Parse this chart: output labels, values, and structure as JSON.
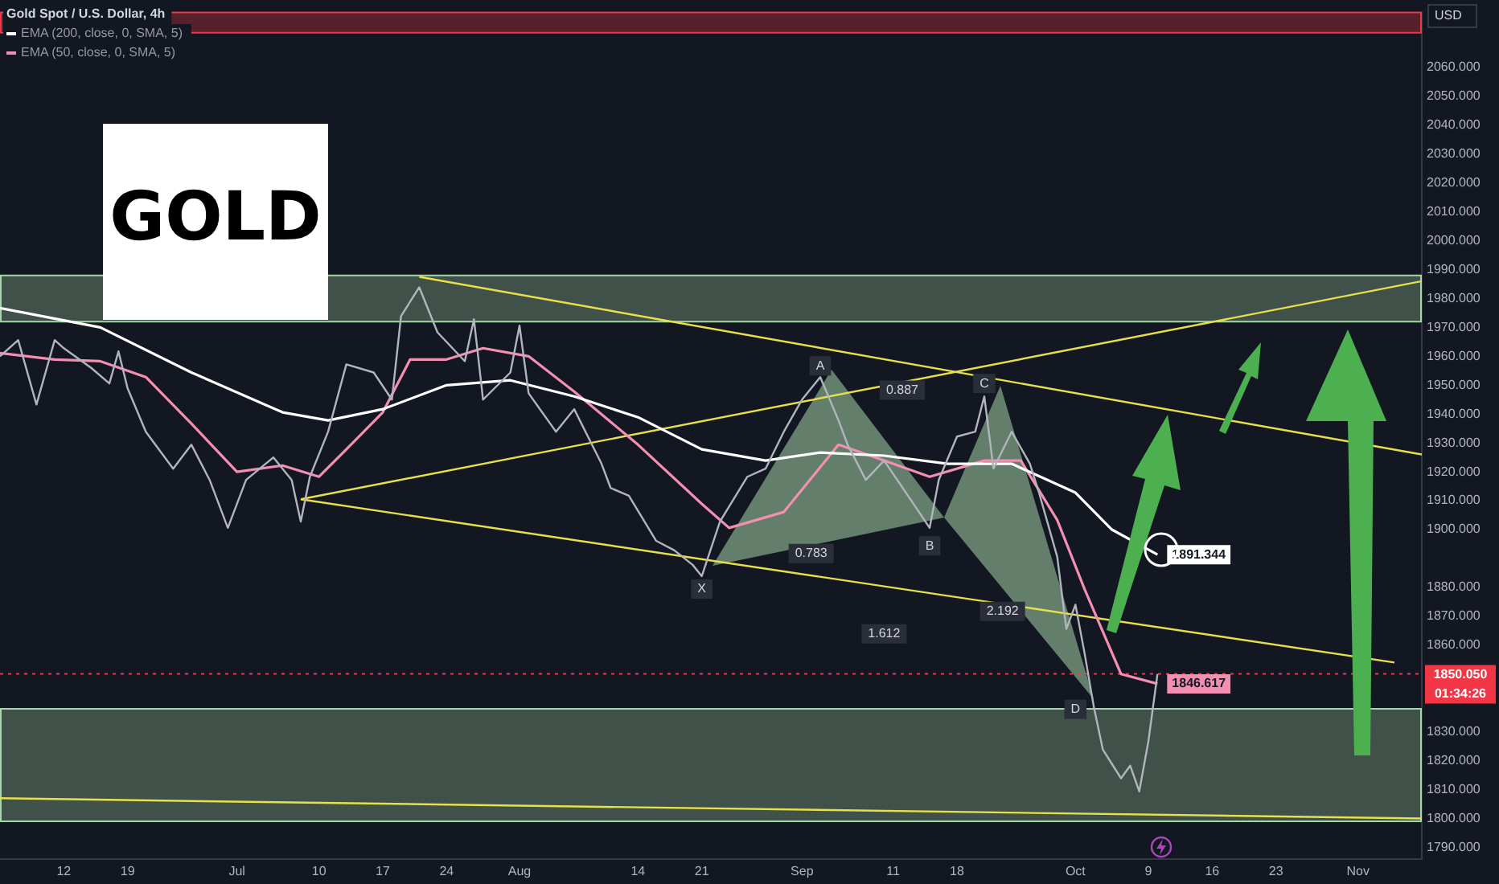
{
  "chart_data": {
    "type": "line",
    "title": "Gold Spot / U.S. Dollar, 4h",
    "ylabel": "USD",
    "legend": "top left",
    "grid": false,
    "xlim": [
      "--06-05",
      "--11-08"
    ],
    "ylim": [
      1786,
      2079
    ],
    "xticks": [
      {
        "value": "--06-12",
        "label": "12"
      },
      {
        "value": "--06-19",
        "label": "19"
      },
      {
        "value": "--07-01",
        "label": "Jul"
      },
      {
        "value": "--07-10",
        "label": "10"
      },
      {
        "value": "--07-17",
        "label": "17"
      },
      {
        "value": "--07-24",
        "label": "24"
      },
      {
        "value": "--08-01",
        "label": "Aug"
      },
      {
        "value": "--08-14",
        "label": "14"
      },
      {
        "value": "--08-21",
        "label": "21"
      },
      {
        "value": "--09-01",
        "label": "Sep"
      },
      {
        "value": "--09-11",
        "label": "11"
      },
      {
        "value": "--09-18",
        "label": "18"
      },
      {
        "value": "--10-01",
        "label": "Oct"
      },
      {
        "value": "--10-09",
        "label": "9"
      },
      {
        "value": "--10-16",
        "label": "16"
      },
      {
        "value": "--10-23",
        "label": "23"
      },
      {
        "value": "--11-01",
        "label": "Nov"
      }
    ],
    "yticks": [
      {
        "value": 1790,
        "label": "1790.000"
      },
      {
        "value": 1800,
        "label": "1800.000"
      },
      {
        "value": 1810,
        "label": "1810.000"
      },
      {
        "value": 1820,
        "label": "1820.000"
      },
      {
        "value": 1830,
        "label": "1830.000"
      },
      {
        "value": 1860,
        "label": "1860.000"
      },
      {
        "value": 1870,
        "label": "1870.000"
      },
      {
        "value": 1880,
        "label": "1880.000"
      },
      {
        "value": 1900,
        "label": "1900.000"
      },
      {
        "value": 1910,
        "label": "1910.000"
      },
      {
        "value": 1920,
        "label": "1920.000"
      },
      {
        "value": 1930,
        "label": "1930.000"
      },
      {
        "value": 1940,
        "label": "1940.000"
      },
      {
        "value": 1950,
        "label": "1950.000"
      },
      {
        "value": 1960,
        "label": "1960.000"
      },
      {
        "value": 1970,
        "label": "1970.000"
      },
      {
        "value": 1980,
        "label": "1980.000"
      },
      {
        "value": 1990,
        "label": "1990.000"
      },
      {
        "value": 2000,
        "label": "2000.000"
      },
      {
        "value": 2010,
        "label": "2010.000"
      },
      {
        "value": 2020,
        "label": "2020.000"
      },
      {
        "value": 2030,
        "label": "2030.000"
      },
      {
        "value": 2040,
        "label": "2040.000"
      },
      {
        "value": 2050,
        "label": "2050.000"
      },
      {
        "value": 2060,
        "label": "2060.000"
      }
    ],
    "series": [
      {
        "color": "#b2b5be",
        "x": [
          "--06-05",
          "--06-07",
          "--06-09",
          "--06-11",
          "--06-12",
          "--06-15",
          "--06-17",
          "--06-18",
          "--06-19",
          "--06-21",
          "--06-24",
          "--06-26",
          "--06-28",
          "--06-30",
          "--07-02",
          "--07-05",
          "--07-07",
          "--07-08",
          "--07-09",
          "--07-11",
          "--07-13",
          "--07-16",
          "--07-18",
          "--07-19",
          "--07-21",
          "--07-23",
          "--07-26",
          "--07-27",
          "--07-28",
          "--07-31",
          "--08-01",
          "--08-02",
          "--08-05",
          "--08-07",
          "--08-10",
          "--08-11",
          "--08-13",
          "--08-16",
          "--08-18",
          "--08-20",
          "--08-21",
          "--08-23",
          "--08-26",
          "--08-28",
          "--08-30",
          "--09-01",
          "--09-03",
          "--09-05",
          "--09-06",
          "--09-08",
          "--09-10",
          "--09-13",
          "--09-15",
          "--09-16",
          "--09-18",
          "--09-20",
          "--09-21",
          "--09-22",
          "--09-24",
          "--09-26",
          "--09-27",
          "--09-29",
          "--09-30",
          "--10-01",
          "--10-02",
          "--10-03",
          "--10-04",
          "--10-06",
          "--10-07",
          "--10-08",
          "--10-09",
          "--10-10"
        ],
        "values": [
          1960,
          1965.6,
          1943.3,
          1965.6,
          1962.8,
          1956,
          1950.6,
          1961.7,
          1948.9,
          1933.9,
          1921.1,
          1929.4,
          1917.2,
          1900.6,
          1917.2,
          1925,
          1917.2,
          1902.8,
          1918.3,
          1933.9,
          1957.2,
          1954.4,
          1945,
          1973.9,
          1983.9,
          1968.3,
          1958.3,
          1972.8,
          1945,
          1954.4,
          1970.6,
          1947.2,
          1933.9,
          1941.7,
          1922.8,
          1914.4,
          1911.7,
          1896.1,
          1892.8,
          1887.8,
          1883.9,
          1902.8,
          1918.3,
          1921.1,
          1933.9,
          1945,
          1952.8,
          1937.8,
          1929.4,
          1917.2,
          1923.9,
          1910,
          1900.6,
          1917.2,
          1932.2,
          1933.9,
          1946.1,
          1921.1,
          1933.9,
          1922.8,
          1912.8,
          1890.6,
          1865.6,
          1874,
          1857.2,
          1838.9,
          1823.9,
          1813.9,
          1818.3,
          1809.4,
          1826.7,
          1850.05
        ]
      },
      {
        "name": "EMA (200, close, 0, SMA, 5)",
        "color": "#ffffff",
        "x": [
          "--06-05",
          "--06-16",
          "--06-26",
          "--07-06",
          "--07-11",
          "--07-17",
          "--07-24",
          "--07-31",
          "--08-07",
          "--08-14",
          "--08-21",
          "--08-28",
          "--09-03",
          "--09-10",
          "--09-17",
          "--09-24",
          "--10-01",
          "--10-05",
          "--10-10"
        ],
        "values": [
          1976.7,
          1970,
          1954.4,
          1940.6,
          1937.8,
          1941.7,
          1950,
          1951.7,
          1946.1,
          1938.9,
          1927.8,
          1923.9,
          1926.7,
          1925.6,
          1922.8,
          1922.8,
          1912.8,
          1900,
          1891.344
        ],
        "value_labels": [
          null,
          null,
          null,
          null,
          null,
          null,
          null,
          null,
          null,
          null,
          null,
          null,
          null,
          null,
          null,
          null,
          null,
          null,
          "1891.344"
        ]
      },
      {
        "name": "EMA (50, close, 0, SMA, 5)",
        "color": "#f48fb1",
        "x": [
          "--06-05",
          "--06-11",
          "--06-16",
          "--06-21",
          "--06-26",
          "--07-01",
          "--07-06",
          "--07-10",
          "--07-13",
          "--07-17",
          "--07-20",
          "--07-24",
          "--07-28",
          "--08-02",
          "--08-07",
          "--08-14",
          "--08-21",
          "--08-24",
          "--08-30",
          "--09-05",
          "--09-10",
          "--09-15",
          "--09-21",
          "--09-25",
          "--09-29",
          "--10-02",
          "--10-06",
          "--10-10"
        ],
        "values": [
          1961.1,
          1958.9,
          1958.3,
          1952.8,
          1936.7,
          1920,
          1922.2,
          1918.3,
          1927.8,
          1940.6,
          1958.9,
          1958.9,
          1962.8,
          1960,
          1947.8,
          1929.4,
          1908.9,
          1900.6,
          1906.1,
          1929.4,
          1923.9,
          1918.3,
          1923.9,
          1923.9,
          1903.3,
          1879.4,
          1850,
          1846.617
        ],
        "value_labels": [
          null,
          null,
          null,
          null,
          null,
          null,
          null,
          null,
          null,
          null,
          null,
          null,
          null,
          null,
          null,
          null,
          null,
          null,
          null,
          null,
          null,
          null,
          null,
          null,
          null,
          null,
          null,
          "1846.617"
        ]
      },
      {
        "color": "#e8e04a",
        "x": [
          "--07-21",
          "--11-08"
        ],
        "values": [
          1987.5,
          1926
        ]
      },
      {
        "color": "#e8e04a",
        "x": [
          "--07-08",
          "--11-08"
        ],
        "values": [
          1910.5,
          1986
        ]
      },
      {
        "color": "#e8e04a",
        "x": [
          "--07-08",
          "--11-05"
        ],
        "values": [
          1910.5,
          1854
        ]
      },
      {
        "color": "#e8e04a",
        "x": [
          "--06-05",
          "--11-08"
        ],
        "values": [
          1807,
          1800
        ]
      }
    ],
    "bands": [
      {
        "axis": "y",
        "from": 1972,
        "to": 1988,
        "color": "#a5d6a7"
      },
      {
        "axis": "y",
        "from": 1799,
        "to": 1838,
        "color": "#a5d6a7"
      },
      {
        "axis": "y",
        "from": 2072,
        "to": 2079,
        "color": "#f23645"
      }
    ],
    "ref_lines": [
      {
        "axis": "y",
        "value": 1850.05,
        "label": "1850.050\n01:34:26",
        "color": "#f23645",
        "line_style": "dotted"
      }
    ],
    "annotations": [
      "GOLD",
      {
        "text": "X",
        "x": "--08-21",
        "y": 1879.4
      },
      {
        "text": "A",
        "x": "--09-03",
        "y": 1956.7
      },
      {
        "text": "B",
        "x": "--09-15",
        "y": 1894.4
      },
      {
        "text": "C",
        "x": "--09-21",
        "y": 1950.6
      },
      {
        "text": "D",
        "x": "--10-01",
        "y": 1837.8
      },
      {
        "text": "0.887",
        "x": "--09-12",
        "y": 1948.3
      },
      {
        "text": "0.783",
        "x": "--09-02",
        "y": 1891.7
      },
      {
        "text": "1.612",
        "x": "--09-10",
        "y": 1863.9
      },
      {
        "text": "2.192",
        "x": "--09-23",
        "y": 1871.7
      }
    ]
  }
}
